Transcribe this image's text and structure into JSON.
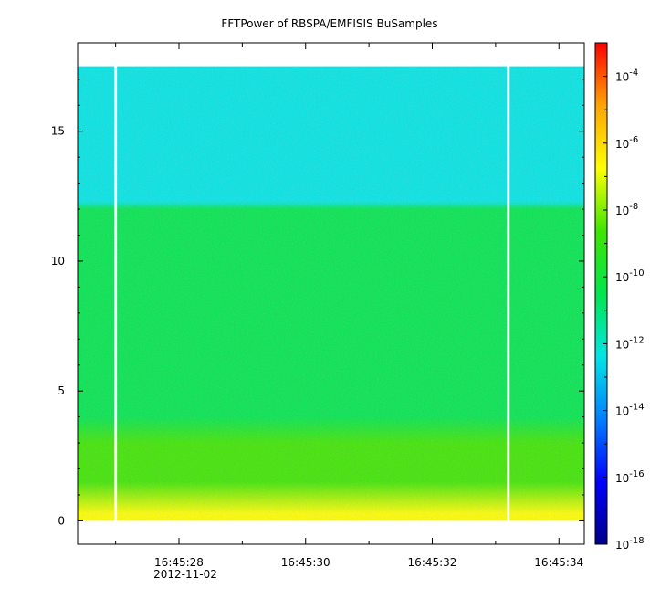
{
  "chart_data": {
    "type": "heatmap",
    "title": "FFTPower of RBSPA/EMFISIS  BuSamples",
    "xlabel": "",
    "ylabel": "",
    "x_ticks": [
      {
        "value": "16:45:28",
        "sublabel": "2012-11-02"
      },
      {
        "value": "16:45:30",
        "sublabel": ""
      },
      {
        "value": "16:45:32",
        "sublabel": ""
      },
      {
        "value": "16:45:34",
        "sublabel": ""
      }
    ],
    "x_range_seconds": [
      26.4,
      34.4
    ],
    "y_ticks": [
      0,
      5,
      10,
      15
    ],
    "ylim": [
      -0.9,
      18.4
    ],
    "data_y_range": [
      0,
      17.5
    ],
    "colorbar": {
      "scale": "log",
      "range": [
        1e-18,
        0.001
      ],
      "tick_labels": [
        {
          "base": "10",
          "exp": "-4",
          "value": 0.0001
        },
        {
          "base": "10",
          "exp": "-6",
          "value": 1e-06
        },
        {
          "base": "10",
          "exp": "-8",
          "value": 1e-08
        },
        {
          "base": "10",
          "exp": "-10",
          "value": 1e-10
        },
        {
          "base": "10",
          "exp": "-12",
          "value": 1e-12
        },
        {
          "base": "10",
          "exp": "-14",
          "value": 1e-14
        },
        {
          "base": "10",
          "exp": "-16",
          "value": 1e-16
        },
        {
          "base": "10",
          "exp": "-18",
          "value": 1e-18
        }
      ],
      "colors": [
        "#00008b",
        "#0000ff",
        "#0080ff",
        "#00e5e5",
        "#00e64d",
        "#3ee600",
        "#ffff00",
        "#ffa500",
        "#ff0000"
      ]
    },
    "power_profile": [
      {
        "y": 0.3,
        "log10_power": -6.5
      },
      {
        "y": 1.5,
        "log10_power": -8.0
      },
      {
        "y": 3.0,
        "log10_power": -9.0
      },
      {
        "y": 4.0,
        "log10_power": -9.6
      },
      {
        "y": 8.0,
        "log10_power": -10.5
      },
      {
        "y": 12.0,
        "log10_power": -10.7
      },
      {
        "y": 12.3,
        "log10_power": -11.8
      },
      {
        "y": 17.5,
        "log10_power": -12.0
      }
    ],
    "data_gaps_seconds": [
      27.0,
      33.2
    ],
    "grid": false,
    "legend": "colorbar-right"
  }
}
